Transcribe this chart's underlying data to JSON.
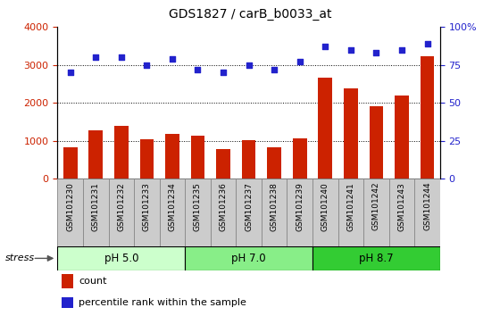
{
  "title": "GDS1827 / carB_b0033_at",
  "categories": [
    "GSM101230",
    "GSM101231",
    "GSM101232",
    "GSM101233",
    "GSM101234",
    "GSM101235",
    "GSM101236",
    "GSM101237",
    "GSM101238",
    "GSM101239",
    "GSM101240",
    "GSM101241",
    "GSM101242",
    "GSM101243",
    "GSM101244"
  ],
  "counts": [
    820,
    1270,
    1380,
    1040,
    1170,
    1130,
    780,
    1020,
    830,
    1050,
    2650,
    2380,
    1900,
    2180,
    3220
  ],
  "percentiles": [
    70,
    80,
    80,
    75,
    79,
    72,
    70,
    75,
    72,
    77,
    87,
    85,
    83,
    85,
    89
  ],
  "bar_color": "#cc2200",
  "dot_color": "#2222cc",
  "ylim_left": [
    0,
    4000
  ],
  "ylim_right": [
    0,
    100
  ],
  "yticks_left": [
    0,
    1000,
    2000,
    3000,
    4000
  ],
  "yticks_right": [
    0,
    25,
    50,
    75,
    100
  ],
  "groups": [
    {
      "label": "pH 5.0",
      "start": 0,
      "end": 4,
      "color": "#ccffcc"
    },
    {
      "label": "pH 7.0",
      "start": 5,
      "end": 9,
      "color": "#88ee88"
    },
    {
      "label": "pH 8.7",
      "start": 10,
      "end": 14,
      "color": "#33cc33"
    }
  ],
  "stress_label": "stress",
  "legend_count": "count",
  "legend_percentile": "percentile rank within the sample",
  "tick_bg_color": "#cccccc",
  "plot_bg": "#ffffff"
}
